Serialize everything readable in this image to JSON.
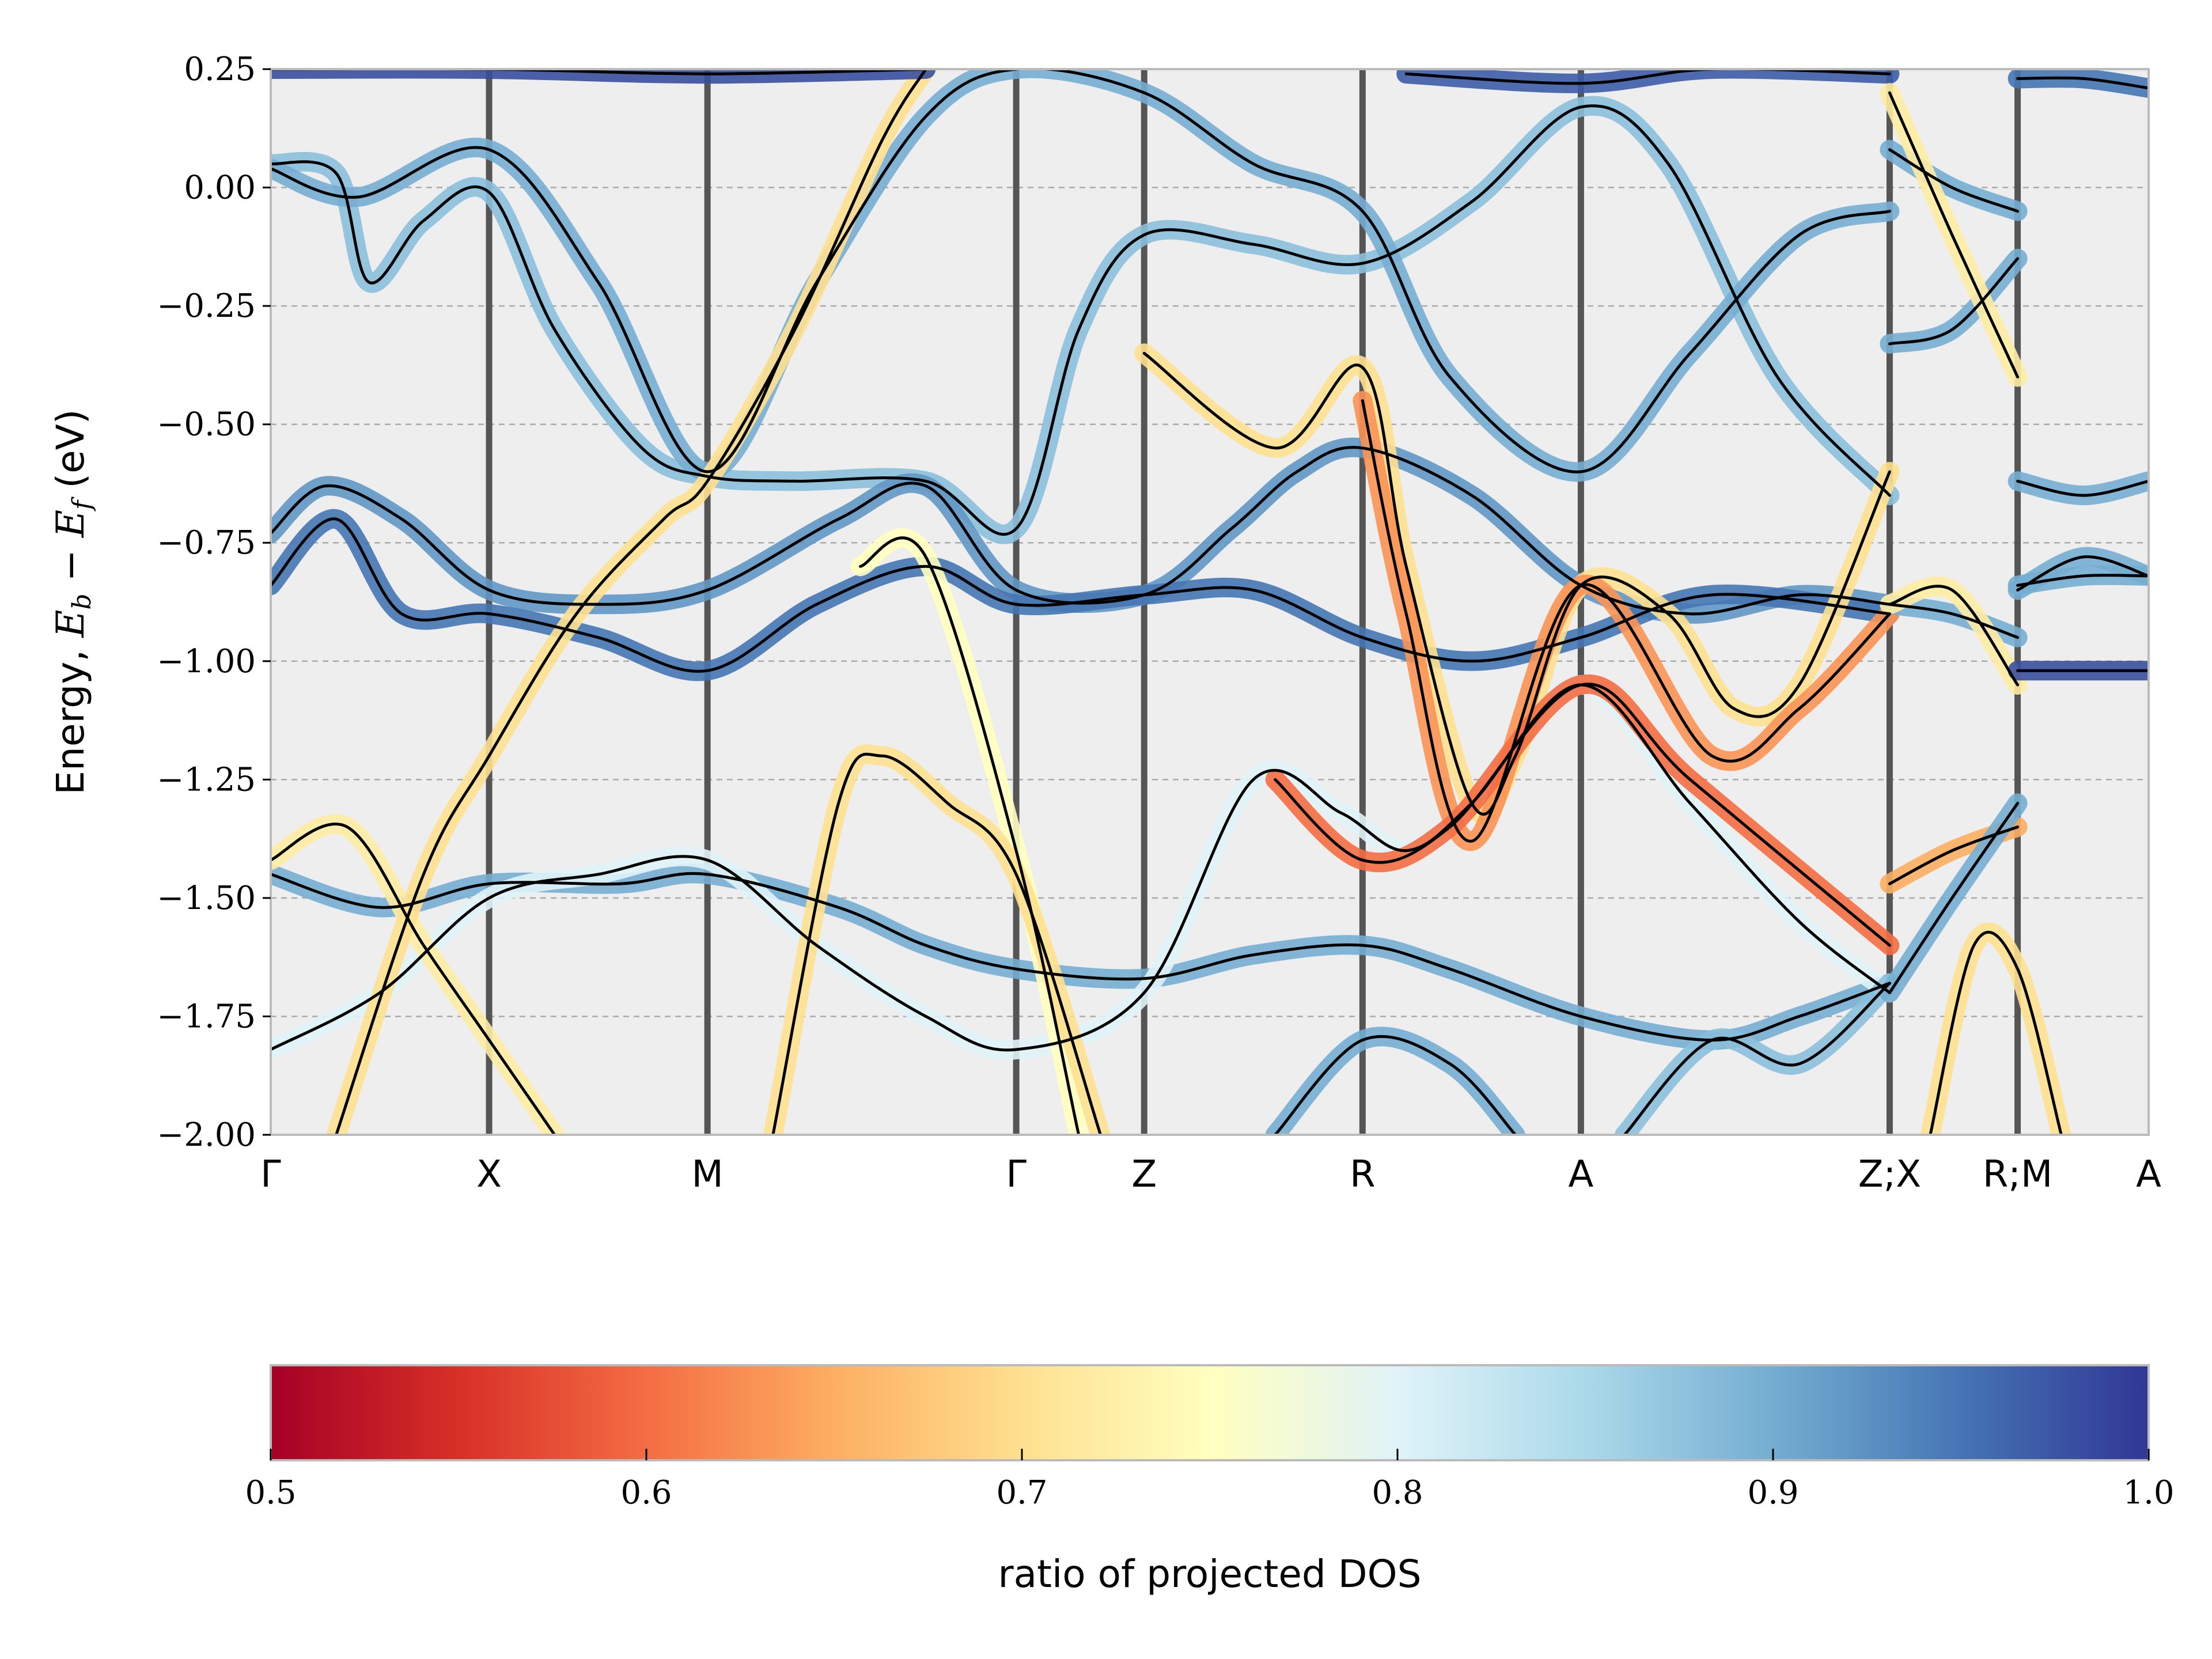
{
  "chart_data": {
    "type": "line",
    "ylabel": "Energy, E_b − E_f (eV)",
    "ylabel_parts": [
      "Energy, ",
      "E",
      "b",
      " − ",
      "E",
      "f",
      " (eV)"
    ],
    "ylim": [
      -2.0,
      0.25
    ],
    "y_ticks": [
      0.25,
      0.0,
      -0.25,
      -0.5,
      -0.75,
      -1.0,
      -1.25,
      -1.5,
      -1.75,
      -2.0
    ],
    "y_tick_labels": [
      "0.25",
      "0.00",
      "−0.25",
      "−0.50",
      "−0.75",
      "−1.00",
      "−1.25",
      "−1.50",
      "−1.75",
      "−2.00"
    ],
    "grid": true,
    "kpath": {
      "labels": [
        "Γ",
        "X",
        "M",
        "Γ",
        "Z",
        "R",
        "A",
        "Z;X",
        "R;M",
        "A"
      ],
      "positions": [
        0.0,
        1.0,
        2.0,
        3.414,
        4.0,
        5.0,
        6.0,
        7.414,
        8.0,
        8.6
      ]
    },
    "series": [
      {
        "ratio": 0.88,
        "points": [
          [
            0,
            0.05
          ],
          [
            0.3,
            0.03
          ],
          [
            0.45,
            -0.2
          ],
          [
            0.7,
            -0.07
          ],
          [
            1,
            -0.01
          ],
          [
            1.3,
            -0.3
          ],
          [
            1.7,
            -0.55
          ],
          [
            2,
            -0.61
          ],
          [
            2.4,
            -0.62
          ],
          [
            3.0,
            -0.62
          ],
          [
            3.414,
            -0.72
          ],
          [
            3.7,
            -0.3
          ],
          [
            4,
            -0.1
          ],
          [
            4.5,
            -0.12
          ],
          [
            5,
            -0.16
          ],
          [
            5.5,
            -0.03
          ],
          [
            6,
            0.17
          ],
          [
            6.4,
            0.05
          ],
          [
            6.9,
            -0.4
          ],
          [
            7.414,
            -0.65
          ]
        ]
      },
      {
        "ratio": 0.9,
        "points": [
          [
            0,
            0.04
          ],
          [
            0.4,
            -0.02
          ],
          [
            1,
            0.08
          ],
          [
            1.5,
            -0.2
          ],
          [
            2,
            -0.6
          ],
          [
            2.5,
            -0.2
          ],
          [
            3,
            0.15
          ],
          [
            3.414,
            0.25
          ],
          [
            4,
            0.2
          ],
          [
            4.5,
            0.05
          ],
          [
            5,
            -0.05
          ],
          [
            5.4,
            -0.4
          ],
          [
            6,
            -0.6
          ],
          [
            6.5,
            -0.35
          ],
          [
            7,
            -0.1
          ],
          [
            7.414,
            -0.05
          ]
        ]
      },
      {
        "ratio": 0.92,
        "points": [
          [
            0,
            -0.73
          ],
          [
            0.25,
            -0.63
          ],
          [
            0.6,
            -0.7
          ],
          [
            1,
            -0.85
          ],
          [
            1.5,
            -0.88
          ],
          [
            2,
            -0.85
          ],
          [
            2.6,
            -0.7
          ],
          [
            3.0,
            -0.63
          ],
          [
            3.414,
            -0.85
          ],
          [
            4,
            -0.86
          ],
          [
            4.4,
            -0.72
          ],
          [
            4.7,
            -0.6
          ],
          [
            5,
            -0.55
          ],
          [
            5.5,
            -0.65
          ],
          [
            6,
            -0.84
          ],
          [
            6.5,
            -0.9
          ],
          [
            7,
            -0.86
          ],
          [
            7.414,
            -0.88
          ]
        ]
      },
      {
        "ratio": 0.95,
        "points": [
          [
            0,
            -0.84
          ],
          [
            0.3,
            -0.7
          ],
          [
            0.6,
            -0.9
          ],
          [
            1,
            -0.9
          ],
          [
            1.5,
            -0.95
          ],
          [
            2,
            -1.02
          ],
          [
            2.5,
            -0.88
          ],
          [
            3.0,
            -0.8
          ],
          [
            3.414,
            -0.88
          ],
          [
            4,
            -0.86
          ],
          [
            4.5,
            -0.85
          ],
          [
            5,
            -0.95
          ],
          [
            5.5,
            -1.0
          ],
          [
            6,
            -0.95
          ],
          [
            6.6,
            -0.86
          ],
          [
            7.414,
            -0.9
          ]
        ]
      },
      {
        "ratio": 0.9,
        "points": [
          [
            0,
            -1.45
          ],
          [
            0.5,
            -1.52
          ],
          [
            1,
            -1.47
          ],
          [
            1.6,
            -1.47
          ],
          [
            2,
            -1.45
          ],
          [
            2.6,
            -1.52
          ],
          [
            3.0,
            -1.6
          ],
          [
            3.414,
            -1.65
          ],
          [
            4,
            -1.67
          ],
          [
            4.5,
            -1.62
          ],
          [
            5,
            -1.6
          ],
          [
            5.4,
            -1.65
          ],
          [
            6,
            -1.75
          ],
          [
            6.6,
            -1.8
          ],
          [
            7.0,
            -1.75
          ],
          [
            7.414,
            -1.68
          ]
        ]
      },
      {
        "ratio": 0.8,
        "points": [
          [
            0,
            -1.82
          ],
          [
            0.5,
            -1.7
          ],
          [
            1,
            -1.5
          ],
          [
            1.5,
            -1.45
          ],
          [
            2,
            -1.42
          ],
          [
            2.5,
            -1.6
          ],
          [
            3.0,
            -1.75
          ],
          [
            3.414,
            -1.82
          ],
          [
            4,
            -1.7
          ],
          [
            4.5,
            -1.25
          ],
          [
            4.9,
            -1.32
          ],
          [
            5.2,
            -1.4
          ],
          [
            5.5,
            -1.3
          ],
          [
            6,
            -1.05
          ],
          [
            6.5,
            -1.3
          ],
          [
            7,
            -1.55
          ],
          [
            7.414,
            -1.7
          ]
        ]
      },
      {
        "ratio": 0.72,
        "points": [
          [
            0,
            -1.42
          ],
          [
            0.35,
            -1.35
          ],
          [
            0.7,
            -1.6
          ],
          [
            1,
            -1.8
          ],
          [
            1.3,
            -2.0
          ]
        ]
      },
      {
        "ratio": 0.7,
        "points": [
          [
            0.3,
            -2.0
          ],
          [
            0.7,
            -1.45
          ],
          [
            1,
            -1.2
          ],
          [
            1.4,
            -0.9
          ],
          [
            1.8,
            -0.7
          ],
          [
            2,
            -0.62
          ],
          [
            2.4,
            -0.3
          ],
          [
            2.8,
            0.1
          ],
          [
            3.0,
            0.25
          ]
        ]
      },
      {
        "ratio": 0.75,
        "points": [
          [
            2.7,
            -0.8
          ],
          [
            3.0,
            -0.78
          ],
          [
            3.414,
            -1.4
          ],
          [
            3.7,
            -2.0
          ]
        ]
      },
      {
        "ratio": 0.7,
        "points": [
          [
            2.3,
            -2.0
          ],
          [
            2.6,
            -1.3
          ],
          [
            2.8,
            -1.2
          ],
          [
            3.1,
            -1.3
          ],
          [
            3.414,
            -1.45
          ],
          [
            3.8,
            -2.0
          ]
        ]
      },
      {
        "ratio": 0.7,
        "points": [
          [
            4,
            -0.35
          ],
          [
            4.6,
            -0.55
          ],
          [
            5,
            -0.38
          ],
          [
            5.2,
            -0.8
          ],
          [
            5.5,
            -1.3
          ],
          [
            5.7,
            -1.2
          ],
          [
            6,
            -0.84
          ],
          [
            6.4,
            -0.9
          ],
          [
            6.7,
            -1.1
          ],
          [
            7.0,
            -1.05
          ],
          [
            7.414,
            -0.6
          ]
        ]
      },
      {
        "ratio": 0.63,
        "points": [
          [
            5,
            -0.45
          ],
          [
            5.2,
            -0.9
          ],
          [
            5.5,
            -1.38
          ],
          [
            6,
            -0.84
          ],
          [
            6.6,
            -1.2
          ],
          [
            7.0,
            -1.1
          ],
          [
            7.414,
            -0.9
          ]
        ]
      },
      {
        "ratio": 0.6,
        "points": [
          [
            4.6,
            -1.25
          ],
          [
            5,
            -1.42
          ],
          [
            5.4,
            -1.35
          ],
          [
            6,
            -1.05
          ],
          [
            6.5,
            -1.25
          ],
          [
            7.414,
            -1.6
          ]
        ]
      },
      {
        "ratio": 0.98,
        "points": [
          [
            0,
            0.25
          ],
          [
            1,
            0.25
          ],
          [
            2,
            0.24
          ],
          [
            3,
            0.25
          ]
        ]
      },
      {
        "ratio": 0.97,
        "points": [
          [
            5.2,
            0.24
          ],
          [
            6,
            0.22
          ],
          [
            6.6,
            0.25
          ],
          [
            7.414,
            0.24
          ]
        ]
      },
      {
        "ratio": 0.88,
        "points": [
          [
            6.2,
            -2.0
          ],
          [
            6.6,
            -1.8
          ],
          [
            7.0,
            -1.85
          ],
          [
            7.414,
            -1.68
          ]
        ]
      },
      {
        "ratio": 0.9,
        "points": [
          [
            4.6,
            -2.0
          ],
          [
            5,
            -1.8
          ],
          [
            5.4,
            -1.85
          ],
          [
            5.7,
            -2.0
          ]
        ]
      },
      {
        "ratio": 0.9,
        "points": [
          [
            7.414,
            0.08
          ],
          [
            7.7,
            0.0
          ],
          [
            8.0,
            -0.05
          ]
        ]
      },
      {
        "ratio": 0.9,
        "points": [
          [
            7.414,
            -0.33
          ],
          [
            7.7,
            -0.3
          ],
          [
            8.0,
            -0.15
          ]
        ]
      },
      {
        "ratio": 0.72,
        "points": [
          [
            7.414,
            0.2
          ],
          [
            7.7,
            -0.1
          ],
          [
            8.0,
            -0.4
          ]
        ]
      },
      {
        "ratio": 0.9,
        "points": [
          [
            7.414,
            -0.88
          ],
          [
            7.7,
            -0.9
          ],
          [
            8.0,
            -0.95
          ]
        ]
      },
      {
        "ratio": 0.72,
        "points": [
          [
            7.414,
            -0.88
          ],
          [
            7.7,
            -0.85
          ],
          [
            8.0,
            -1.05
          ]
        ]
      },
      {
        "ratio": 0.65,
        "points": [
          [
            7.414,
            -1.47
          ],
          [
            7.7,
            -1.4
          ],
          [
            8.0,
            -1.35
          ]
        ]
      },
      {
        "ratio": 0.9,
        "points": [
          [
            7.414,
            -1.7
          ],
          [
            7.7,
            -1.5
          ],
          [
            8.0,
            -1.3
          ]
        ]
      },
      {
        "ratio": 0.7,
        "points": [
          [
            7.6,
            -2.0
          ],
          [
            7.8,
            -1.6
          ],
          [
            8.0,
            -1.65
          ],
          [
            8.2,
            -2.0
          ]
        ]
      },
      {
        "ratio": 0.95,
        "points": [
          [
            8.0,
            0.23
          ],
          [
            8.3,
            0.23
          ],
          [
            8.6,
            0.21
          ]
        ]
      },
      {
        "ratio": 0.9,
        "points": [
          [
            8.0,
            -0.62
          ],
          [
            8.3,
            -0.65
          ],
          [
            8.6,
            -0.62
          ]
        ]
      },
      {
        "ratio": 0.9,
        "points": [
          [
            8.0,
            -0.84
          ],
          [
            8.3,
            -0.82
          ],
          [
            8.6,
            -0.82
          ]
        ]
      },
      {
        "ratio": 0.98,
        "points": [
          [
            8.0,
            -1.02
          ],
          [
            8.3,
            -1.02
          ],
          [
            8.6,
            -1.02
          ]
        ]
      },
      {
        "ratio": 0.9,
        "points": [
          [
            8.0,
            -0.85
          ],
          [
            8.3,
            -0.78
          ],
          [
            8.6,
            -0.82
          ]
        ]
      }
    ],
    "colorbar": {
      "label": "ratio of projected DOS",
      "range": [
        0.5,
        1.0
      ],
      "ticks": [
        0.5,
        0.6,
        0.7,
        0.8,
        0.9,
        1.0
      ],
      "tick_labels": [
        "0.5",
        "0.6",
        "0.7",
        "0.8",
        "0.9",
        "1.0"
      ],
      "colormap": [
        "#a50026",
        "#d73027",
        "#f46d43",
        "#fdae61",
        "#fee090",
        "#ffffbf",
        "#e0f3f8",
        "#abd9e9",
        "#74add1",
        "#4575b4",
        "#313695"
      ]
    },
    "colors": {
      "plot_background": "#eeeeee",
      "band_line": "#000000",
      "kpoint_line": "#555555",
      "gridline": "#aaaaaa",
      "frame": "#bbbbbb"
    }
  }
}
